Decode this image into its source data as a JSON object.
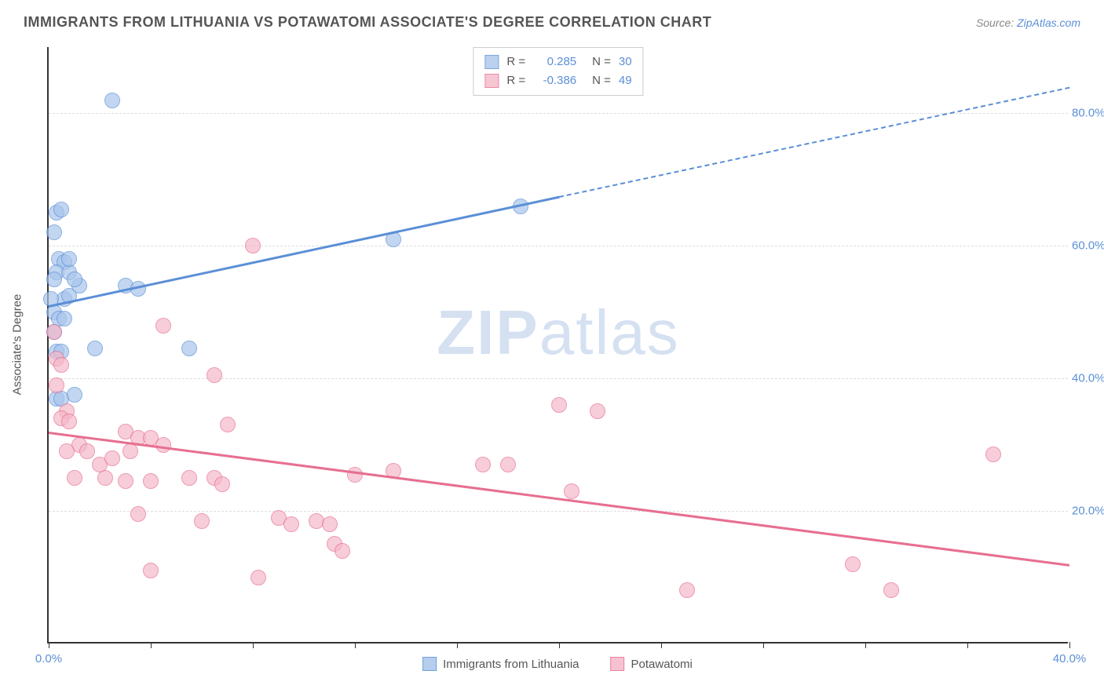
{
  "title": "IMMIGRANTS FROM LITHUANIA VS POTAWATOMI ASSOCIATE'S DEGREE CORRELATION CHART",
  "source_prefix": "Source: ",
  "source_link": "ZipAtlas.com",
  "watermark_bold": "ZIP",
  "watermark_rest": "atlas",
  "chart": {
    "type": "scatter",
    "y_axis_label": "Associate's Degree",
    "xlim": [
      0,
      40
    ],
    "ylim": [
      0,
      90
    ],
    "x_ticks": [
      0,
      4,
      8,
      12,
      16,
      20,
      24,
      28,
      32,
      36,
      40
    ],
    "x_tick_labels": {
      "0": "0.0%",
      "40": "40.0%"
    },
    "y_ticks": [
      20,
      40,
      60,
      80
    ],
    "y_tick_labels": {
      "20": "20.0%",
      "40": "40.0%",
      "60": "60.0%",
      "80": "80.0%"
    },
    "grid_color": "#dddddd",
    "axis_color": "#333333",
    "background_color": "#ffffff",
    "point_radius": 10,
    "point_stroke_width": 1.5,
    "point_fill_opacity": 0.35,
    "series": [
      {
        "key": "lithuania",
        "label": "Immigrants from Lithuania",
        "color_stroke": "#5b8fd6",
        "color_fill": "#a9c6ec",
        "R": "0.285",
        "N": "30",
        "trend": {
          "x1": 0,
          "y1": 51,
          "x2": 20,
          "y2": 67.5,
          "x2_dash": 40,
          "y2_dash": 84
        },
        "points": [
          [
            0.3,
            65
          ],
          [
            0.5,
            65.5
          ],
          [
            0.2,
            62
          ],
          [
            0.4,
            58
          ],
          [
            0.6,
            57.5
          ],
          [
            0.3,
            56
          ],
          [
            0.8,
            56
          ],
          [
            0.2,
            55
          ],
          [
            0.6,
            52
          ],
          [
            0.8,
            52.5
          ],
          [
            1.2,
            54
          ],
          [
            1.0,
            55
          ],
          [
            0.2,
            50
          ],
          [
            0.4,
            49
          ],
          [
            0.6,
            49
          ],
          [
            3.0,
            54
          ],
          [
            3.5,
            53.5
          ],
          [
            2.5,
            82
          ],
          [
            0.3,
            44
          ],
          [
            0.5,
            44
          ],
          [
            1.8,
            44.5
          ],
          [
            5.5,
            44.5
          ],
          [
            18.5,
            66
          ],
          [
            0.3,
            37
          ],
          [
            0.5,
            37
          ],
          [
            1.0,
            37.5
          ],
          [
            13.5,
            61
          ],
          [
            0.2,
            47
          ],
          [
            0.8,
            58
          ],
          [
            0.1,
            52
          ]
        ]
      },
      {
        "key": "potawatomi",
        "label": "Potawatomi",
        "color_stroke": "#e76f91",
        "color_fill": "#f5b8c9",
        "R": "-0.386",
        "N": "49",
        "trend": {
          "x1": 0,
          "y1": 32,
          "x2": 40,
          "y2": 12,
          "x2_dash": 40,
          "y2_dash": 12
        },
        "points": [
          [
            0.2,
            47
          ],
          [
            0.3,
            43
          ],
          [
            0.5,
            42
          ],
          [
            0.3,
            39
          ],
          [
            0.7,
            35
          ],
          [
            0.5,
            34
          ],
          [
            0.8,
            33.5
          ],
          [
            1.2,
            30
          ],
          [
            1.5,
            29
          ],
          [
            0.7,
            29
          ],
          [
            2.0,
            27
          ],
          [
            2.5,
            28
          ],
          [
            1.0,
            25
          ],
          [
            2.2,
            25
          ],
          [
            3.0,
            24.5
          ],
          [
            3.2,
            29
          ],
          [
            3.0,
            32
          ],
          [
            3.5,
            31
          ],
          [
            4.0,
            31
          ],
          [
            4.5,
            30
          ],
          [
            4.0,
            24.5
          ],
          [
            5.5,
            25
          ],
          [
            6.5,
            25
          ],
          [
            6.8,
            24
          ],
          [
            4.5,
            48
          ],
          [
            8.0,
            60
          ],
          [
            3.5,
            19.5
          ],
          [
            4.0,
            11
          ],
          [
            6.5,
            40.5
          ],
          [
            7.0,
            33
          ],
          [
            8.2,
            10
          ],
          [
            9.0,
            19
          ],
          [
            9.5,
            18
          ],
          [
            10.5,
            18.5
          ],
          [
            11.0,
            18
          ],
          [
            11.2,
            15
          ],
          [
            11.5,
            14
          ],
          [
            12.0,
            25.5
          ],
          [
            13.5,
            26
          ],
          [
            17.0,
            27
          ],
          [
            18.0,
            27
          ],
          [
            20.0,
            36
          ],
          [
            21.5,
            35
          ],
          [
            20.5,
            23
          ],
          [
            25.0,
            8
          ],
          [
            31.5,
            12
          ],
          [
            33.0,
            8
          ],
          [
            37.0,
            28.5
          ],
          [
            6.0,
            18.5
          ]
        ]
      }
    ]
  },
  "legend_top": {
    "r_label": "R =",
    "n_label": "N ="
  }
}
